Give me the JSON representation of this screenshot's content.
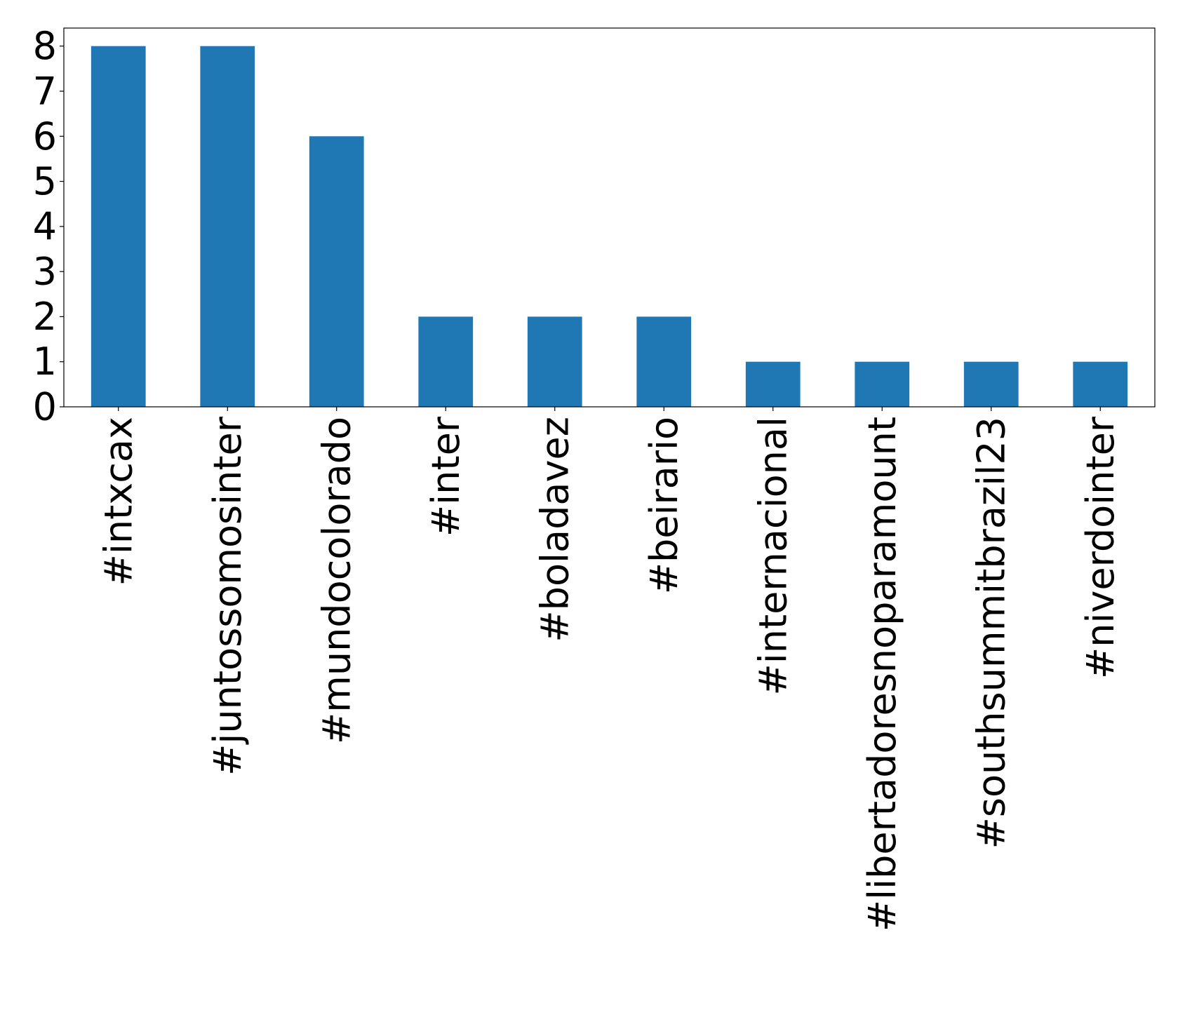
{
  "chart_data": {
    "type": "bar",
    "categories": [
      "#intxcax",
      "#juntossomosinter",
      "#mundocolorado",
      "#inter",
      "#boladavez",
      "#beirario",
      "#internacional",
      "#libertadoresnoparamount",
      "#southsummitbrazil23",
      "#niverdointer"
    ],
    "values": [
      8,
      8,
      6,
      2,
      2,
      2,
      1,
      1,
      1,
      1
    ],
    "color": "#1f77b4",
    "ylim": [
      0,
      8.4
    ],
    "yticks": [
      0,
      1,
      2,
      3,
      4,
      5,
      6,
      7,
      8
    ],
    "grid": false
  }
}
